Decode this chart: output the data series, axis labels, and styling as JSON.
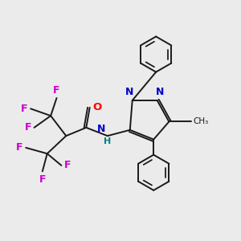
{
  "background_color": "#ebebeb",
  "bond_color": "#1a1a1a",
  "atom_colors": {
    "O": "#ff0000",
    "N": "#0000cc",
    "NH_N": "#0000cc",
    "NH_H": "#008080",
    "F": "#cc00cc",
    "C": "#1a1a1a"
  },
  "figsize": [
    3.0,
    3.0
  ],
  "dpi": 100
}
